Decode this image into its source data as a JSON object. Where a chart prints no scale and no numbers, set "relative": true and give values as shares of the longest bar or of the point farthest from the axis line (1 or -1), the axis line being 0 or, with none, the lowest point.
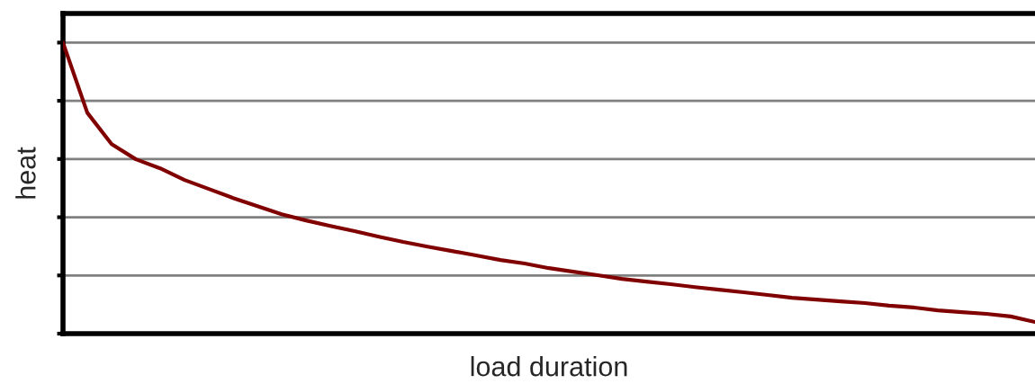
{
  "chart_data": {
    "type": "line",
    "relative": true,
    "xlabel": "load duration",
    "ylabel": "heat",
    "grid": "y",
    "line_style": "solid",
    "marker": "none",
    "categories": [
      null,
      null,
      null,
      null,
      null,
      null,
      null,
      null,
      null,
      null,
      null,
      null,
      null,
      null,
      null,
      null,
      null,
      null,
      null,
      null,
      null,
      null,
      null,
      null,
      null,
      null,
      null,
      null,
      null,
      null,
      null,
      null,
      null,
      null,
      null,
      null,
      null,
      null,
      null,
      null,
      null
    ],
    "series": [
      {
        "color": "#800000",
        "values": [
          1.0,
          0.759,
          0.651,
          0.599,
          0.568,
          0.528,
          0.497,
          0.466,
          0.438,
          0.41,
          0.389,
          0.37,
          0.352,
          0.333,
          0.315,
          0.299,
          0.284,
          0.269,
          0.253,
          0.241,
          0.225,
          0.213,
          0.201,
          0.188,
          0.179,
          0.17,
          0.16,
          0.151,
          0.142,
          0.133,
          0.123,
          0.117,
          0.111,
          0.105,
          0.096,
          0.09,
          0.08,
          0.074,
          0.068,
          0.059,
          0.04
        ]
      }
    ]
  }
}
